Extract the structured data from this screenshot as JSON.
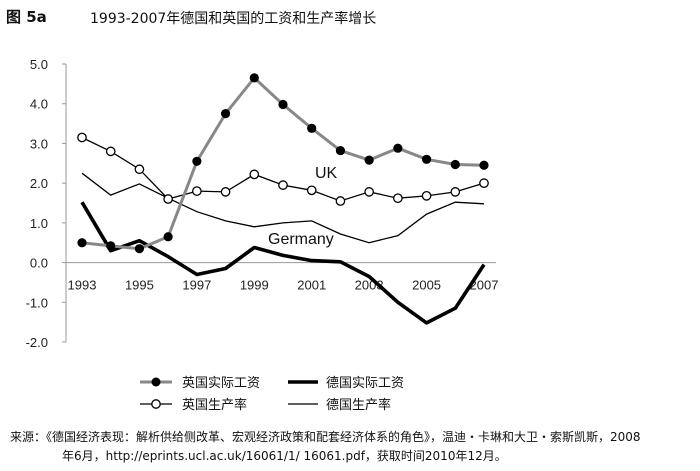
{
  "figure_label": "图 5a",
  "title": "1993-2007年德国和英国的工资和生产率增长",
  "source_prefix": "来源：",
  "source_line1": "《德国经济表现：解析供给侧改革、宏观经济政策和配套经济体系的角色》，温迪・卡琳和大卫・索斯凯斯，2008",
  "source_line2": "年6月，http://eprints.ucl.ac.uk/16061/1/ 16061.pdf，获取时间2010年12月。",
  "chart_data": {
    "type": "line",
    "x": [
      1993,
      1994,
      1995,
      1996,
      1997,
      1998,
      1999,
      2000,
      2001,
      2002,
      2003,
      2004,
      2005,
      2006,
      2007
    ],
    "xticks": [
      "1993",
      "1995",
      "1997",
      "1999",
      "2001",
      "2003",
      "2005",
      "2007"
    ],
    "yticks": [
      "5.0",
      "4.0",
      "3.0",
      "2.0",
      "1.0",
      "0.0",
      "-1.0",
      "-2.0"
    ],
    "ylim": [
      -2.0,
      5.0
    ],
    "annotations": [
      "UK",
      "Germany"
    ],
    "series": [
      {
        "name": "英国实际工资",
        "style": "thick-line-filled-marker",
        "color": "#888888",
        "values": [
          0.5,
          0.42,
          0.35,
          0.65,
          2.55,
          3.75,
          4.65,
          3.98,
          3.38,
          2.82,
          2.58,
          2.88,
          2.6,
          2.47,
          2.45
        ]
      },
      {
        "name": "德国实际工资",
        "style": "very-thick-line",
        "color": "#000000",
        "values": [
          1.52,
          0.3,
          0.55,
          0.15,
          -0.3,
          -0.15,
          0.38,
          0.18,
          0.05,
          0.02,
          -0.35,
          -1.0,
          -1.52,
          -1.15,
          -0.05
        ]
      },
      {
        "name": "英国生产率",
        "style": "line-open-marker",
        "color": "#000000",
        "values": [
          3.15,
          2.8,
          2.35,
          1.6,
          1.8,
          1.78,
          2.22,
          1.95,
          1.82,
          1.55,
          1.78,
          1.62,
          1.68,
          1.78,
          2.0
        ]
      },
      {
        "name": "德国生产率",
        "style": "thin-line",
        "color": "#000000",
        "values": [
          2.25,
          1.7,
          1.98,
          1.62,
          1.28,
          1.05,
          0.9,
          1.0,
          1.05,
          0.72,
          0.5,
          0.68,
          1.22,
          1.52,
          1.48
        ]
      }
    ]
  }
}
